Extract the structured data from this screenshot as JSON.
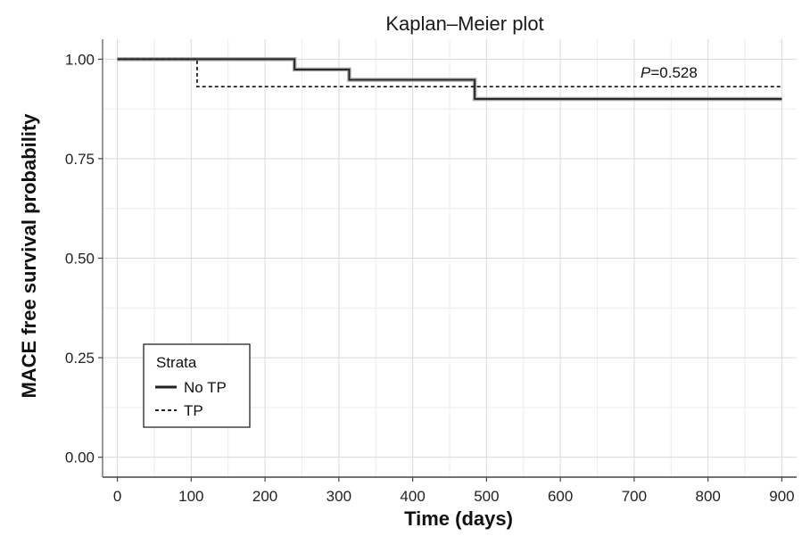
{
  "chart_data": {
    "type": "line",
    "title": "Kaplan–Meier plot",
    "xlabel": "Time (days)",
    "ylabel": "MACE free survival probability",
    "xlim": [
      -20,
      920
    ],
    "ylim": [
      -0.05,
      1.05
    ],
    "xticks": [
      0,
      100,
      200,
      300,
      400,
      500,
      600,
      700,
      800,
      900
    ],
    "yticks": [
      0.0,
      0.25,
      0.5,
      0.75,
      1.0
    ],
    "ytick_labels": [
      "0.00",
      "0.25",
      "0.50",
      "0.75",
      "1.00"
    ],
    "grid": true,
    "legend": {
      "title": "Strata",
      "placement": "bottom-left"
    },
    "annotation": {
      "italic": "P",
      "text": "=0.528"
    },
    "series": [
      {
        "name": "No TP",
        "style": "solid",
        "color": "#222222",
        "x": [
          0,
          240,
          240,
          314,
          314,
          484,
          484,
          900
        ],
        "y": [
          1.0,
          1.0,
          0.974,
          0.974,
          0.948,
          0.948,
          0.9,
          0.9
        ]
      },
      {
        "name": "TP",
        "style": "dashed",
        "color": "#222222",
        "x": [
          0,
          108,
          108,
          900
        ],
        "y": [
          1.0,
          1.0,
          0.931,
          0.931
        ]
      }
    ]
  }
}
